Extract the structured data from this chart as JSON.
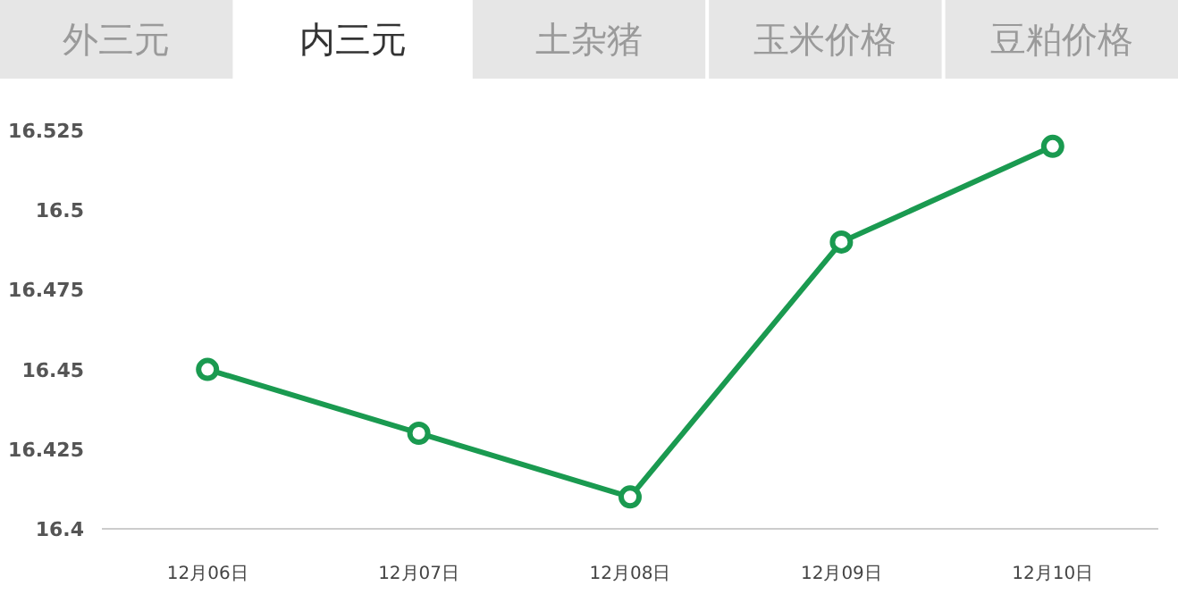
{
  "chart_data": {
    "type": "line",
    "annotations": [
      "外三元",
      "内三元",
      "土杂猪",
      "玉米价格",
      "豆粕价格"
    ],
    "categories": [
      "12月06日",
      "12月07日",
      "12月08日",
      "12月09日",
      "12月10日"
    ],
    "values": [
      16.45,
      16.43,
      16.41,
      16.49,
      16.52
    ],
    "color": "#1a9a50",
    "marker": "circle",
    "line_style": "solid",
    "grid": false,
    "ylim": [
      16.4,
      16.525
    ],
    "yticks": [
      16.4,
      16.425,
      16.45,
      16.475,
      16.5,
      16.525
    ]
  }
}
